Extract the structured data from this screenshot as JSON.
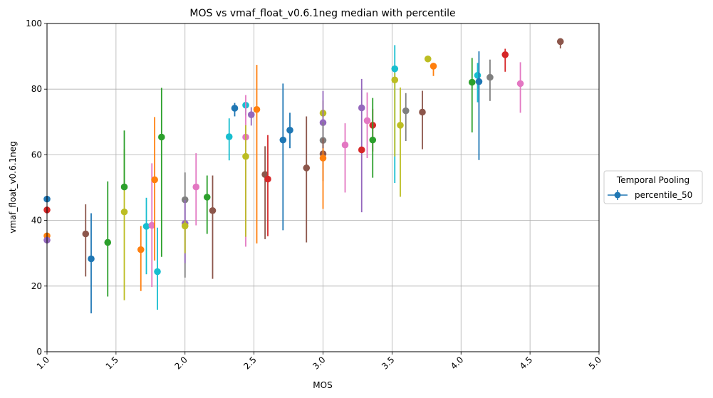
{
  "chart_data": {
    "type": "scatter",
    "title": "MOS vs vmaf_float_v0.6.1neg median with percentile",
    "xlabel": "MOS",
    "ylabel": "vmaf_float_v0.6.1neg",
    "xlim": [
      1.0,
      5.0
    ],
    "ylim": [
      0,
      100
    ],
    "xticks": [
      "1.0",
      "1.5",
      "2.0",
      "2.5",
      "3.0",
      "3.5",
      "4.0",
      "4.5",
      "5.0"
    ],
    "yticks": [
      "0",
      "20",
      "40",
      "60",
      "80",
      "100"
    ],
    "grid": true,
    "legend": {
      "title": "Temporal Pooling",
      "placement": "outside-right",
      "entries": [
        "percentile_50"
      ]
    },
    "palette": [
      "#1f77b4",
      "#ff7f0e",
      "#2ca02c",
      "#d62728",
      "#9467bd",
      "#8c564b",
      "#e377c2",
      "#7f7f7f",
      "#bcbd22",
      "#17becf"
    ],
    "points": [
      {
        "x": 1.0,
        "y": 46.5,
        "lo": 46.5,
        "hi": 46.5,
        "color": "#1f77b4"
      },
      {
        "x": 1.0,
        "y": 43.2,
        "lo": 43.2,
        "hi": 43.2,
        "color": "#d62728"
      },
      {
        "x": 1.0,
        "y": 35.3,
        "lo": 35.3,
        "hi": 35.3,
        "color": "#ff7f0e"
      },
      {
        "x": 1.0,
        "y": 34.0,
        "lo": 34.0,
        "hi": 34.0,
        "color": "#9467bd"
      },
      {
        "x": 1.28,
        "y": 35.9,
        "lo": 22.9,
        "hi": 44.9,
        "color": "#8c564b"
      },
      {
        "x": 1.32,
        "y": 28.3,
        "lo": 11.7,
        "hi": 42.2,
        "color": "#1f77b4"
      },
      {
        "x": 1.44,
        "y": 33.3,
        "lo": 16.8,
        "hi": 51.9,
        "color": "#2ca02c"
      },
      {
        "x": 1.56,
        "y": 42.6,
        "lo": 15.7,
        "hi": 61.7,
        "color": "#bcbd22"
      },
      {
        "x": 1.56,
        "y": 50.2,
        "lo": 50.2,
        "hi": 67.4,
        "color": "#2ca02c"
      },
      {
        "x": 1.68,
        "y": 31.1,
        "lo": 18.5,
        "hi": 38.3,
        "color": "#ff7f0e"
      },
      {
        "x": 1.72,
        "y": 38.2,
        "lo": 23.6,
        "hi": 46.9,
        "color": "#17becf"
      },
      {
        "x": 1.76,
        "y": 38.5,
        "lo": 19.7,
        "hi": 57.4,
        "color": "#e377c2"
      },
      {
        "x": 1.78,
        "y": 52.4,
        "lo": 27.8,
        "hi": 71.5,
        "color": "#ff7f0e"
      },
      {
        "x": 1.8,
        "y": 24.4,
        "lo": 12.8,
        "hi": 37.8,
        "color": "#17becf"
      },
      {
        "x": 1.83,
        "y": 65.4,
        "lo": 28.9,
        "hi": 80.4,
        "color": "#2ca02c"
      },
      {
        "x": 2.0,
        "y": 46.3,
        "lo": 22.6,
        "hi": 54.6,
        "color": "#7f7f7f"
      },
      {
        "x": 2.0,
        "y": 39.1,
        "lo": 27.0,
        "hi": 46.2,
        "color": "#9467bd"
      },
      {
        "x": 2.0,
        "y": 38.3,
        "lo": 30.0,
        "hi": 40.0,
        "color": "#bcbd22"
      },
      {
        "x": 2.08,
        "y": 50.2,
        "lo": 38.5,
        "hi": 60.5,
        "color": "#e377c2"
      },
      {
        "x": 2.16,
        "y": 47.1,
        "lo": 35.9,
        "hi": 53.7,
        "color": "#2ca02c"
      },
      {
        "x": 2.2,
        "y": 43.0,
        "lo": 22.2,
        "hi": 53.7,
        "color": "#8c564b"
      },
      {
        "x": 2.32,
        "y": 65.5,
        "lo": 58.3,
        "hi": 71.1,
        "color": "#17becf"
      },
      {
        "x": 2.36,
        "y": 74.2,
        "lo": 71.7,
        "hi": 75.8,
        "color": "#1f77b4"
      },
      {
        "x": 2.44,
        "y": 75.1,
        "lo": 72.0,
        "hi": 75.8,
        "color": "#17becf"
      },
      {
        "x": 2.44,
        "y": 65.4,
        "lo": 32.0,
        "hi": 78.2,
        "color": "#e377c2"
      },
      {
        "x": 2.44,
        "y": 59.5,
        "lo": 35.0,
        "hi": 69.0,
        "color": "#bcbd22"
      },
      {
        "x": 2.48,
        "y": 72.2,
        "lo": 68.9,
        "hi": 74.5,
        "color": "#9467bd"
      },
      {
        "x": 2.52,
        "y": 73.8,
        "lo": 33.0,
        "hi": 87.4,
        "color": "#ff7f0e"
      },
      {
        "x": 2.58,
        "y": 54.0,
        "lo": 34.3,
        "hi": 62.6,
        "color": "#8c564b"
      },
      {
        "x": 2.6,
        "y": 52.6,
        "lo": 35.2,
        "hi": 66.0,
        "color": "#d62728"
      },
      {
        "x": 2.71,
        "y": 64.5,
        "lo": 37.0,
        "hi": 81.7,
        "color": "#1f77b4"
      },
      {
        "x": 2.76,
        "y": 67.5,
        "lo": 62.0,
        "hi": 72.8,
        "color": "#1f77b4"
      },
      {
        "x": 2.88,
        "y": 56.0,
        "lo": 33.3,
        "hi": 71.7,
        "color": "#8c564b"
      },
      {
        "x": 3.0,
        "y": 72.7,
        "lo": 57.0,
        "hi": 76.5,
        "color": "#bcbd22"
      },
      {
        "x": 3.0,
        "y": 69.8,
        "lo": 58.0,
        "hi": 79.4,
        "color": "#9467bd"
      },
      {
        "x": 3.0,
        "y": 64.4,
        "lo": 55.6,
        "hi": 70.0,
        "color": "#7f7f7f"
      },
      {
        "x": 3.0,
        "y": 60.3,
        "lo": 52.0,
        "hi": 65.0,
        "color": "#8c564b"
      },
      {
        "x": 3.0,
        "y": 59.0,
        "lo": 43.5,
        "hi": 62.0,
        "color": "#ff7f0e"
      },
      {
        "x": 3.16,
        "y": 63.0,
        "lo": 48.5,
        "hi": 69.6,
        "color": "#e377c2"
      },
      {
        "x": 3.28,
        "y": 74.3,
        "lo": 42.5,
        "hi": 83.1,
        "color": "#9467bd"
      },
      {
        "x": 3.28,
        "y": 61.5,
        "lo": 61.5,
        "hi": 61.5,
        "color": "#d62728"
      },
      {
        "x": 3.32,
        "y": 70.4,
        "lo": 59.0,
        "hi": 79.0,
        "color": "#e377c2"
      },
      {
        "x": 3.36,
        "y": 69.0,
        "lo": 61.0,
        "hi": 74.0,
        "color": "#d62728"
      },
      {
        "x": 3.36,
        "y": 64.5,
        "lo": 53.0,
        "hi": 77.3,
        "color": "#2ca02c"
      },
      {
        "x": 3.52,
        "y": 86.2,
        "lo": 51.4,
        "hi": 93.4,
        "color": "#17becf"
      },
      {
        "x": 3.52,
        "y": 82.8,
        "lo": 59.5,
        "hi": 85.0,
        "color": "#bcbd22"
      },
      {
        "x": 3.56,
        "y": 69.0,
        "lo": 47.2,
        "hi": 80.5,
        "color": "#bcbd22"
      },
      {
        "x": 3.6,
        "y": 73.4,
        "lo": 64.2,
        "hi": 78.8,
        "color": "#7f7f7f"
      },
      {
        "x": 3.72,
        "y": 73.0,
        "lo": 61.7,
        "hi": 79.5,
        "color": "#8c564b"
      },
      {
        "x": 3.76,
        "y": 89.2,
        "lo": 89.2,
        "hi": 89.2,
        "color": "#bcbd22"
      },
      {
        "x": 3.8,
        "y": 87.0,
        "lo": 84.0,
        "hi": 88.0,
        "color": "#ff7f0e"
      },
      {
        "x": 4.08,
        "y": 82.1,
        "lo": 66.8,
        "hi": 89.5,
        "color": "#2ca02c"
      },
      {
        "x": 4.12,
        "y": 84.2,
        "lo": 76.0,
        "hi": 88.0,
        "color": "#17becf"
      },
      {
        "x": 4.13,
        "y": 82.3,
        "lo": 58.4,
        "hi": 91.5,
        "color": "#1f77b4"
      },
      {
        "x": 4.21,
        "y": 83.6,
        "lo": 76.4,
        "hi": 89.0,
        "color": "#7f7f7f"
      },
      {
        "x": 4.32,
        "y": 90.5,
        "lo": 85.3,
        "hi": 92.3,
        "color": "#d62728"
      },
      {
        "x": 4.43,
        "y": 81.7,
        "lo": 72.8,
        "hi": 88.2,
        "color": "#e377c2"
      },
      {
        "x": 4.72,
        "y": 94.5,
        "lo": 92.4,
        "hi": 95.0,
        "color": "#8c564b"
      }
    ]
  }
}
